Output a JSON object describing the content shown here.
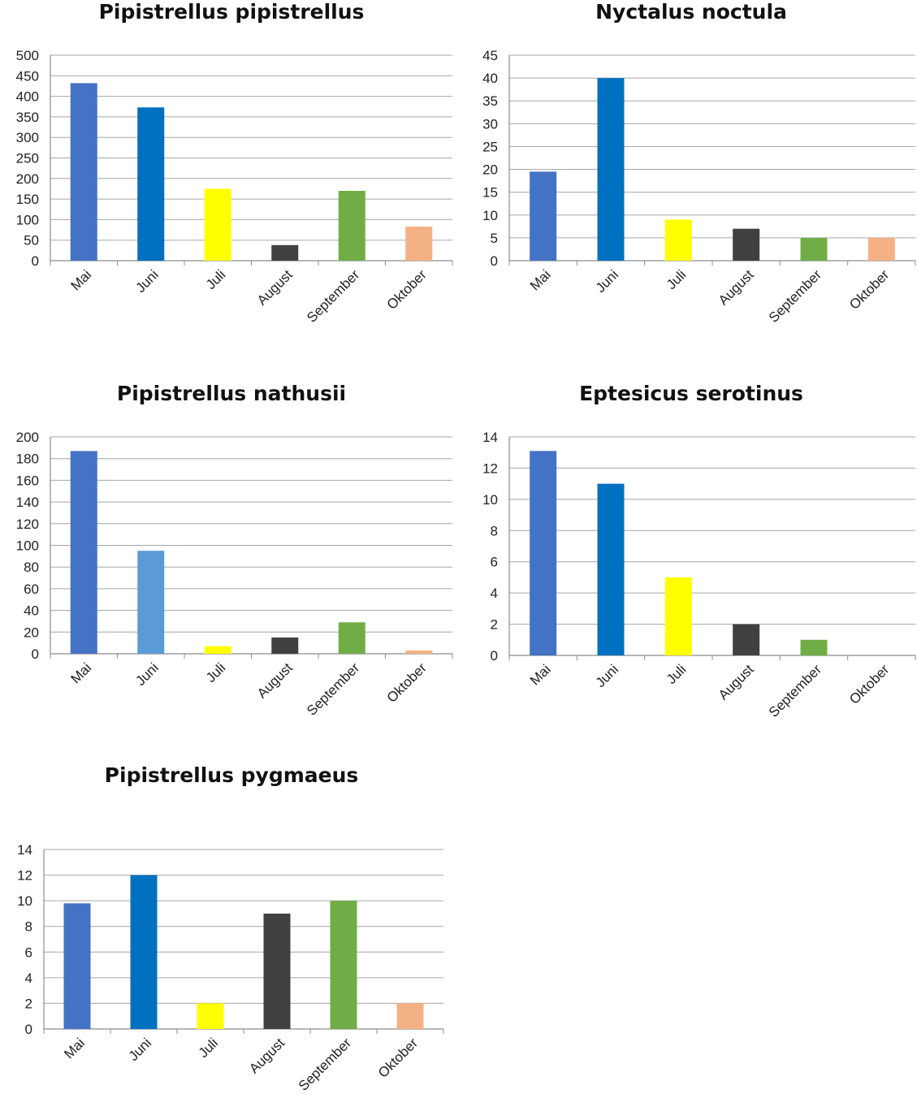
{
  "chart_data": [
    {
      "type": "bar",
      "title": "Pipistrellus pipistrellus",
      "xlabel": "",
      "ylabel": "",
      "categories": [
        "Mai",
        "Juni",
        "Juli",
        "August",
        "September",
        "Oktober"
      ],
      "values": [
        432,
        373,
        175,
        38,
        170,
        83
      ],
      "colors": [
        "#4472c4",
        "#0070c0",
        "#ffff00",
        "#404040",
        "#70ad47",
        "#f4b183"
      ],
      "ylim": [
        0,
        500
      ],
      "ystep": 50,
      "grid": true,
      "legend": "none"
    },
    {
      "type": "bar",
      "title": "Nyctalus noctula",
      "xlabel": "",
      "ylabel": "",
      "categories": [
        "Mai",
        "Juni",
        "Juli",
        "August",
        "September",
        "Oktober"
      ],
      "values": [
        19.5,
        40,
        9,
        7,
        5,
        5
      ],
      "colors": [
        "#4472c4",
        "#0070c0",
        "#ffff00",
        "#404040",
        "#70ad47",
        "#f4b183"
      ],
      "ylim": [
        0,
        45
      ],
      "ystep": 5,
      "grid": true,
      "legend": "none"
    },
    {
      "type": "bar",
      "title": "Pipistrellus nathusii",
      "xlabel": "",
      "ylabel": "",
      "categories": [
        "Mai",
        "Juni",
        "Juli",
        "August",
        "September",
        "Oktober"
      ],
      "values": [
        187,
        95,
        7,
        15,
        29,
        3
      ],
      "colors": [
        "#4472c4",
        "#5b9bd5",
        "#ffff00",
        "#404040",
        "#70ad47",
        "#f4b183"
      ],
      "ylim": [
        0,
        200
      ],
      "ystep": 20,
      "grid": true,
      "legend": "none"
    },
    {
      "type": "bar",
      "title": "Eptesicus serotinus",
      "xlabel": "",
      "ylabel": "",
      "categories": [
        "Mai",
        "Juni",
        "Juli",
        "August",
        "September",
        "Oktober"
      ],
      "values": [
        13.1,
        11,
        5,
        2,
        1,
        0
      ],
      "colors": [
        "#4472c4",
        "#0070c0",
        "#ffff00",
        "#404040",
        "#70ad47",
        "#f4b183"
      ],
      "ylim": [
        0,
        14
      ],
      "ystep": 2,
      "grid": true,
      "legend": "none"
    },
    {
      "type": "bar",
      "title": "Pipistrellus pygmaeus",
      "xlabel": "",
      "ylabel": "",
      "categories": [
        "Mai",
        "Juni",
        "Juli",
        "August",
        "September",
        "Oktober"
      ],
      "values": [
        9.8,
        12,
        2,
        9,
        10,
        2
      ],
      "colors": [
        "#4472c4",
        "#0070c0",
        "#ffff00",
        "#404040",
        "#70ad47",
        "#f4b183"
      ],
      "ylim": [
        0,
        14
      ],
      "ystep": 2,
      "grid": true,
      "legend": "none"
    }
  ]
}
